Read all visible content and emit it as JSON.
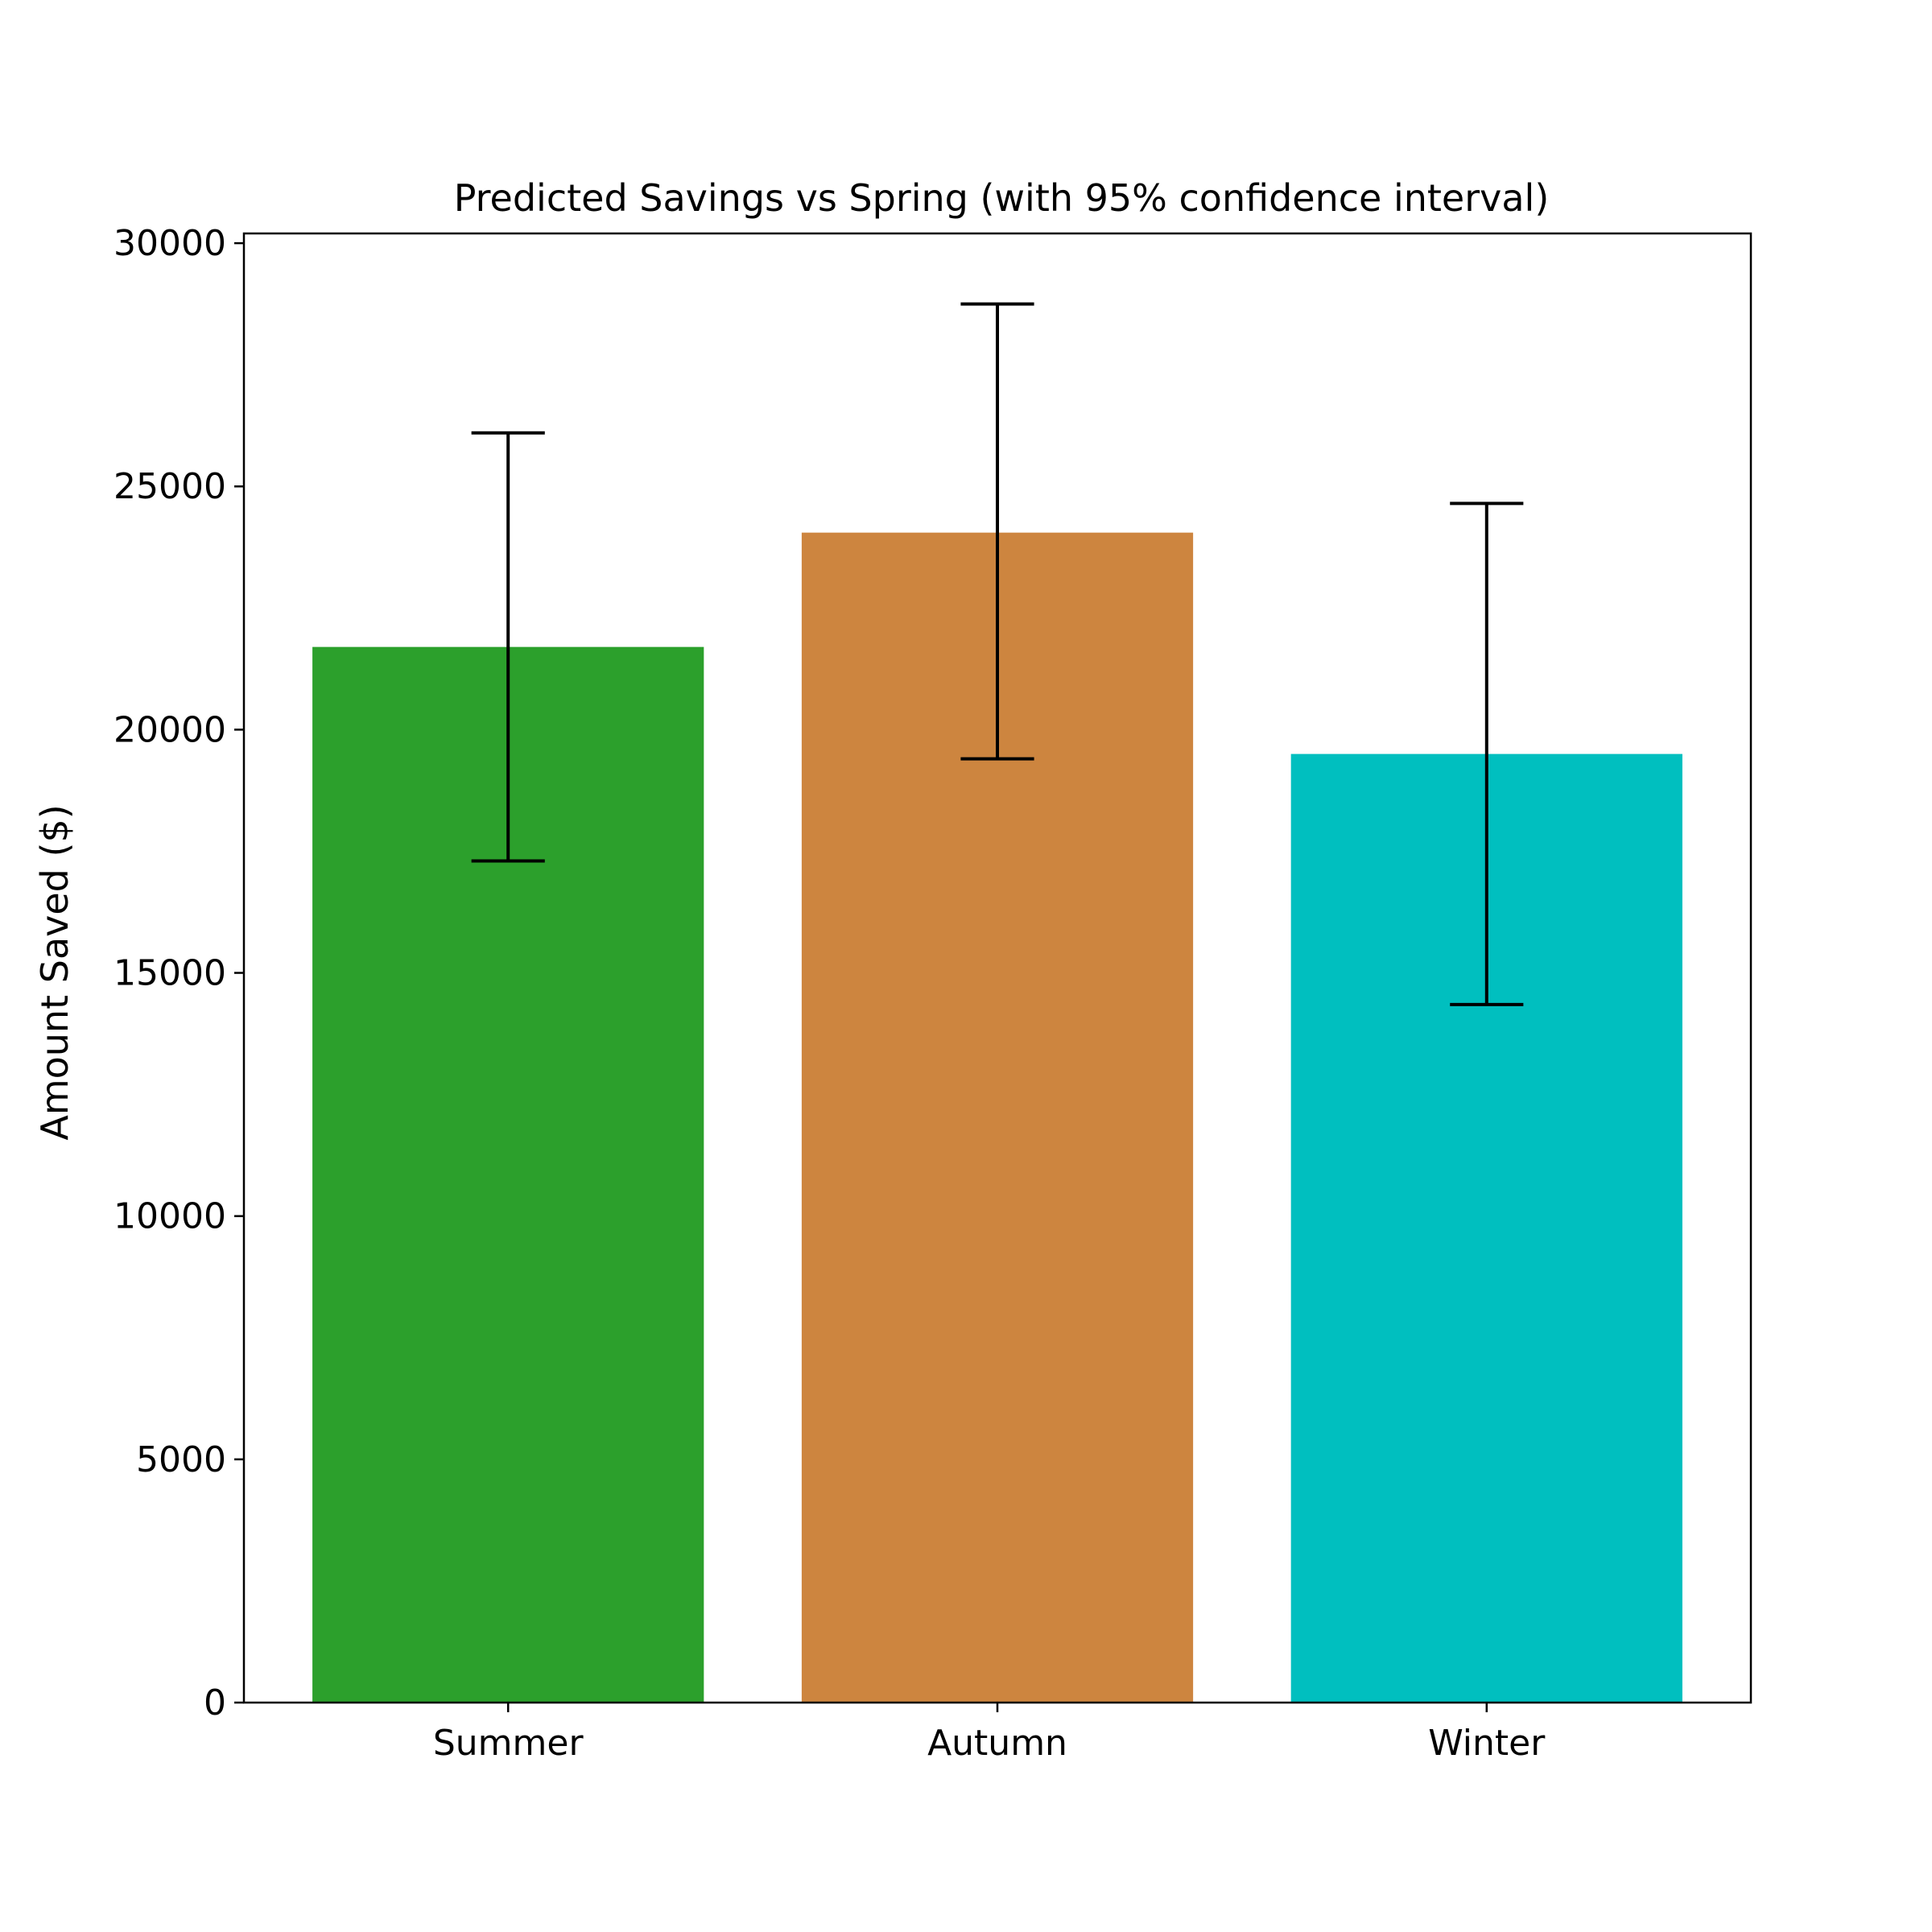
{
  "chart_data": {
    "type": "bar",
    "title": "Predicted Savings vs Spring (with 95% confidence interval)",
    "xlabel": "",
    "ylabel": "Amount Saved ($)",
    "ylim": [
      0,
      30200
    ],
    "yticks": [
      0,
      5000,
      10000,
      15000,
      20000,
      25000,
      30000
    ],
    "ytick_labels": [
      "0",
      "5000",
      "10000",
      "15000",
      "20000",
      "25000",
      "30000"
    ],
    "categories": [
      "Summer",
      "Autumn",
      "Winter"
    ],
    "values": [
      21700,
      24050,
      19500
    ],
    "ci_low": [
      17300,
      19400,
      14350
    ],
    "ci_high": [
      26100,
      28750,
      24650
    ],
    "colors": [
      "#2ca02c",
      "#cd853f",
      "#00bfbf"
    ],
    "grid": false,
    "legend": "none"
  }
}
